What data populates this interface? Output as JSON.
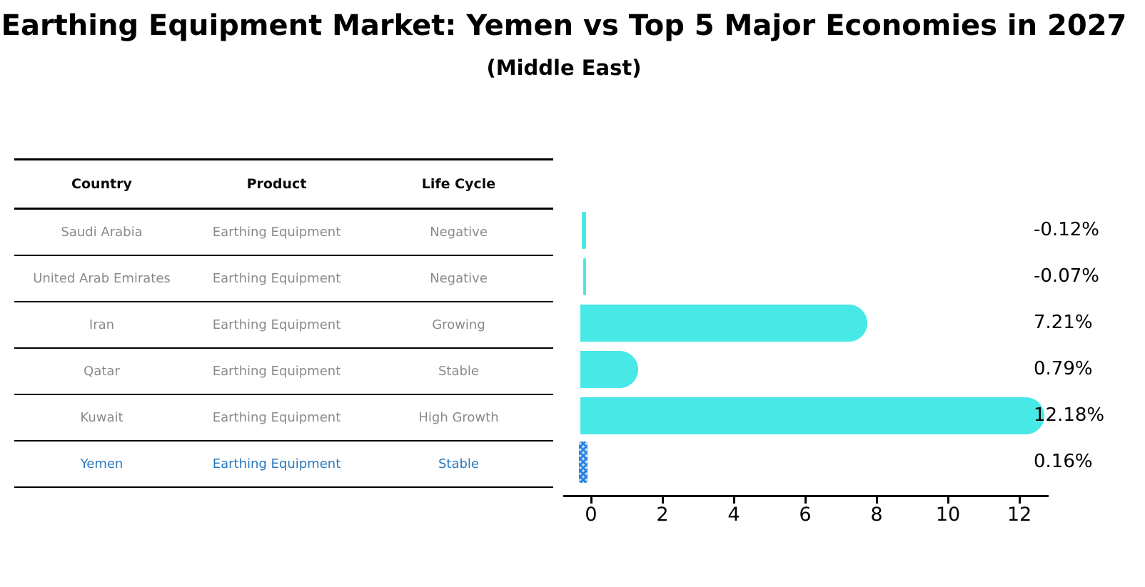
{
  "title": "Earthing Equipment Market: Yemen vs Top 5 Major Economies in 2027",
  "subtitle": "(Middle East)",
  "table": {
    "headers": [
      "Country",
      "Product",
      "Life Cycle"
    ],
    "rows": [
      {
        "country": "Saudi Arabia",
        "product": "Earthing Equipment",
        "life_cycle": "Negative",
        "highlight": false
      },
      {
        "country": "United Arab Emirates",
        "product": "Earthing Equipment",
        "life_cycle": "Negative",
        "highlight": false
      },
      {
        "country": "Iran",
        "product": "Earthing Equipment",
        "life_cycle": "Growing",
        "highlight": false
      },
      {
        "country": "Qatar",
        "product": "Earthing Equipment",
        "life_cycle": "Stable",
        "highlight": false
      },
      {
        "country": "Kuwait",
        "product": "Earthing Equipment",
        "life_cycle": "High Growth",
        "highlight": false
      },
      {
        "country": "Yemen",
        "product": "Earthing Equipment",
        "life_cycle": "Stable",
        "highlight": true
      }
    ]
  },
  "chart_data": {
    "type": "bar",
    "orientation": "horizontal",
    "title": "Earthing Equipment Market: Yemen vs Top 5 Major Economies in 2027 (Middle East)",
    "categories": [
      "Saudi Arabia",
      "United Arab Emirates",
      "Iran",
      "Qatar",
      "Kuwait",
      "Yemen"
    ],
    "values": [
      -0.12,
      -0.07,
      7.21,
      0.79,
      12.18,
      0.16
    ],
    "value_labels": [
      "-0.12%",
      "-0.07%",
      "7.21%",
      "0.79%",
      "12.18%",
      "0.16%"
    ],
    "xticks": [
      "0",
      "2",
      "4",
      "6",
      "8",
      "10",
      "12"
    ],
    "xlim": [
      -0.5,
      12.9
    ],
    "grid": false,
    "legend": false,
    "bar_color": "#48e8e6",
    "highlight_index": 5,
    "highlight_color": "#2580e4",
    "highlight_style": "x-hatch",
    "highlight_text_color": "#2878be"
  }
}
